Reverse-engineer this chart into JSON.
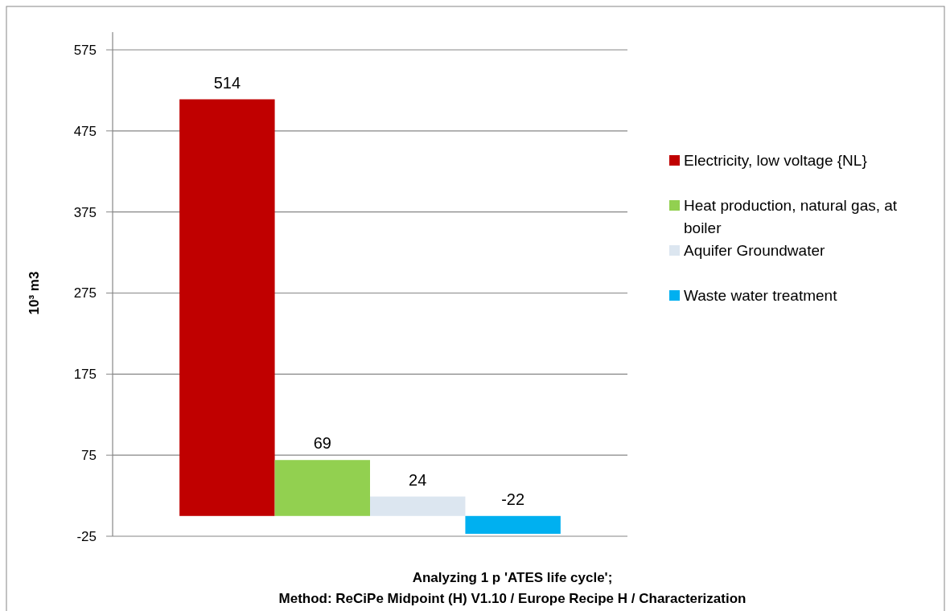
{
  "chart_data": {
    "type": "bar",
    "categories": [
      null
    ],
    "series": [
      {
        "name": "Electricity, low voltage {NL}",
        "color": "#c00000",
        "values": [
          514
        ]
      },
      {
        "name": "Heat production, natural gas, at boiler",
        "color": "#92d050",
        "values": [
          69
        ]
      },
      {
        "name": "Aquifer Groundwater",
        "color": "#dce6f0",
        "values": [
          24
        ]
      },
      {
        "name": "Waste water treatment",
        "color": "#00b0f0",
        "values": [
          -22
        ]
      }
    ],
    "ylim": [
      -25,
      575
    ],
    "yticks": [
      -25,
      75,
      175,
      275,
      375,
      475,
      575
    ],
    "grid": "y",
    "legend": "right",
    "data_labels": true,
    "ylabel": "10³ m3",
    "xlabel": "Analyzing 1 p 'ATES life cycle';\nMethod: ReCiPe Midpoint (H) V1.10 / Europe Recipe H / Characterization"
  }
}
